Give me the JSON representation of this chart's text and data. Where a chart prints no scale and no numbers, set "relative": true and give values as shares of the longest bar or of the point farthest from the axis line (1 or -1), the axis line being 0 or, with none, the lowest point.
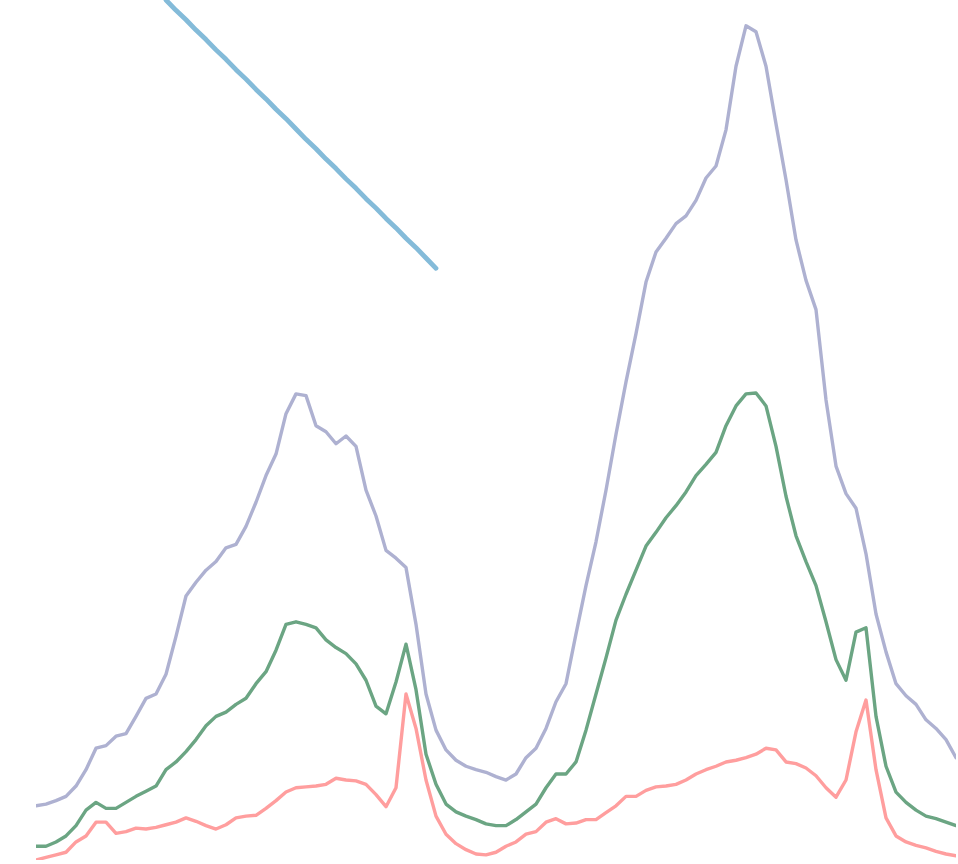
{
  "chart_data": {
    "type": "line",
    "relative": true,
    "tick_labels": false,
    "categories": [
      null,
      null,
      null,
      null,
      null,
      null,
      null,
      null,
      null,
      null,
      null,
      null,
      null,
      null,
      null,
      null,
      null,
      null,
      null,
      null,
      null,
      null,
      null,
      null,
      null,
      null,
      null,
      null,
      null,
      null,
      null,
      null,
      null,
      null,
      null,
      null,
      null,
      null,
      null,
      null,
      null,
      null,
      null,
      null,
      null,
      null,
      null,
      null,
      null,
      null,
      null,
      null,
      null,
      null,
      null,
      null,
      null,
      null,
      null,
      null,
      null,
      null,
      null,
      null,
      null,
      null,
      null,
      null,
      null,
      null,
      null,
      null,
      null,
      null,
      null,
      null,
      null,
      null,
      null,
      null,
      null,
      null,
      null,
      null,
      null,
      null,
      null,
      null,
      null,
      null,
      null,
      null,
      null
    ],
    "series": [
      {
        "color": "#aeb1d1",
        "values": [
          0.063,
          0.065,
          0.069,
          0.074,
          0.086,
          0.105,
          0.13,
          0.133,
          0.144,
          0.147,
          0.167,
          0.188,
          0.193,
          0.216,
          0.26,
          0.307,
          0.323,
          0.337,
          0.347,
          0.363,
          0.367,
          0.388,
          0.416,
          0.447,
          0.472,
          0.519,
          0.542,
          0.54,
          0.505,
          0.498,
          0.484,
          0.493,
          0.481,
          0.43,
          0.4,
          0.36,
          0.351,
          0.34,
          0.274,
          0.193,
          0.151,
          0.128,
          0.116,
          0.109,
          0.105,
          0.102,
          0.097,
          0.093,
          0.1,
          0.119,
          0.13,
          0.153,
          0.184,
          0.205,
          0.263,
          0.319,
          0.37,
          0.43,
          0.495,
          0.556,
          0.612,
          0.672,
          0.707,
          0.723,
          0.74,
          0.749,
          0.767,
          0.793,
          0.807,
          0.849,
          0.923,
          0.97,
          0.963,
          0.923,
          0.856,
          0.791,
          0.721,
          0.674,
          0.64,
          0.535,
          0.458,
          0.426,
          0.409,
          0.356,
          0.286,
          0.242,
          0.205,
          0.191,
          0.181,
          0.163,
          0.153,
          0.14,
          0.119
        ]
      },
      {
        "color": "#6ba583",
        "values": [
          0.016,
          0.016,
          0.021,
          0.028,
          0.04,
          0.058,
          0.067,
          0.06,
          0.06,
          0.067,
          0.074,
          0.08,
          0.086,
          0.105,
          0.114,
          0.126,
          0.14,
          0.156,
          0.167,
          0.172,
          0.181,
          0.188,
          0.205,
          0.219,
          0.244,
          0.274,
          0.277,
          0.274,
          0.27,
          0.256,
          0.247,
          0.24,
          0.228,
          0.209,
          0.179,
          0.17,
          0.207,
          0.251,
          0.198,
          0.123,
          0.088,
          0.065,
          0.056,
          0.051,
          0.047,
          0.042,
          0.04,
          0.04,
          0.047,
          0.056,
          0.065,
          0.084,
          0.1,
          0.1,
          0.114,
          0.151,
          0.193,
          0.235,
          0.279,
          0.309,
          0.337,
          0.365,
          0.381,
          0.398,
          0.412,
          0.428,
          0.447,
          0.46,
          0.474,
          0.505,
          0.528,
          0.542,
          0.543,
          0.528,
          0.481,
          0.423,
          0.377,
          0.347,
          0.319,
          0.277,
          0.233,
          0.209,
          0.265,
          0.27,
          0.167,
          0.109,
          0.079,
          0.067,
          0.058,
          0.051,
          0.048,
          0.044,
          0.04
        ]
      },
      {
        "color": "#ff9e9e",
        "values": [
          0.0,
          0.003,
          0.006,
          0.009,
          0.021,
          0.028,
          0.044,
          0.044,
          0.031,
          0.033,
          0.037,
          0.036,
          0.038,
          0.041,
          0.044,
          0.049,
          0.045,
          0.04,
          0.036,
          0.041,
          0.049,
          0.051,
          0.052,
          0.06,
          0.069,
          0.079,
          0.084,
          0.085,
          0.086,
          0.088,
          0.095,
          0.093,
          0.092,
          0.088,
          0.076,
          0.062,
          0.084,
          0.193,
          0.153,
          0.093,
          0.051,
          0.03,
          0.019,
          0.012,
          0.007,
          0.006,
          0.009,
          0.016,
          0.021,
          0.03,
          0.033,
          0.044,
          0.048,
          0.042,
          0.043,
          0.047,
          0.047,
          0.055,
          0.063,
          0.074,
          0.074,
          0.081,
          0.085,
          0.086,
          0.088,
          0.093,
          0.1,
          0.105,
          0.109,
          0.114,
          0.116,
          0.119,
          0.123,
          0.13,
          0.128,
          0.114,
          0.112,
          0.107,
          0.098,
          0.084,
          0.073,
          0.093,
          0.149,
          0.186,
          0.105,
          0.049,
          0.028,
          0.021,
          0.017,
          0.014,
          0.01,
          0.007,
          0.005
        ]
      },
      {
        "color": "#84bbd9",
        "values": [
          null,
          null,
          null,
          null,
          null,
          null,
          null,
          null,
          null,
          null,
          null,
          null,
          null,
          1.0,
          0.988,
          0.977,
          0.965,
          0.954,
          0.942,
          0.931,
          0.919,
          0.908,
          0.896,
          0.885,
          0.873,
          0.862,
          0.85,
          0.838,
          0.827,
          0.815,
          0.804,
          0.792,
          0.781,
          0.769,
          0.758,
          0.746,
          0.735,
          0.723,
          0.712,
          0.7,
          0.688,
          null,
          null,
          null,
          null,
          null,
          null,
          null,
          null,
          null,
          null,
          null,
          null,
          null,
          null,
          null,
          null,
          null,
          null,
          null,
          null,
          null,
          null,
          null,
          null,
          null,
          null,
          null,
          null,
          null,
          null,
          null,
          null,
          null,
          null,
          null,
          null,
          null,
          null,
          null,
          null,
          null,
          null,
          null,
          null,
          null,
          null,
          null,
          null,
          null,
          null,
          null,
          null
        ]
      }
    ]
  }
}
